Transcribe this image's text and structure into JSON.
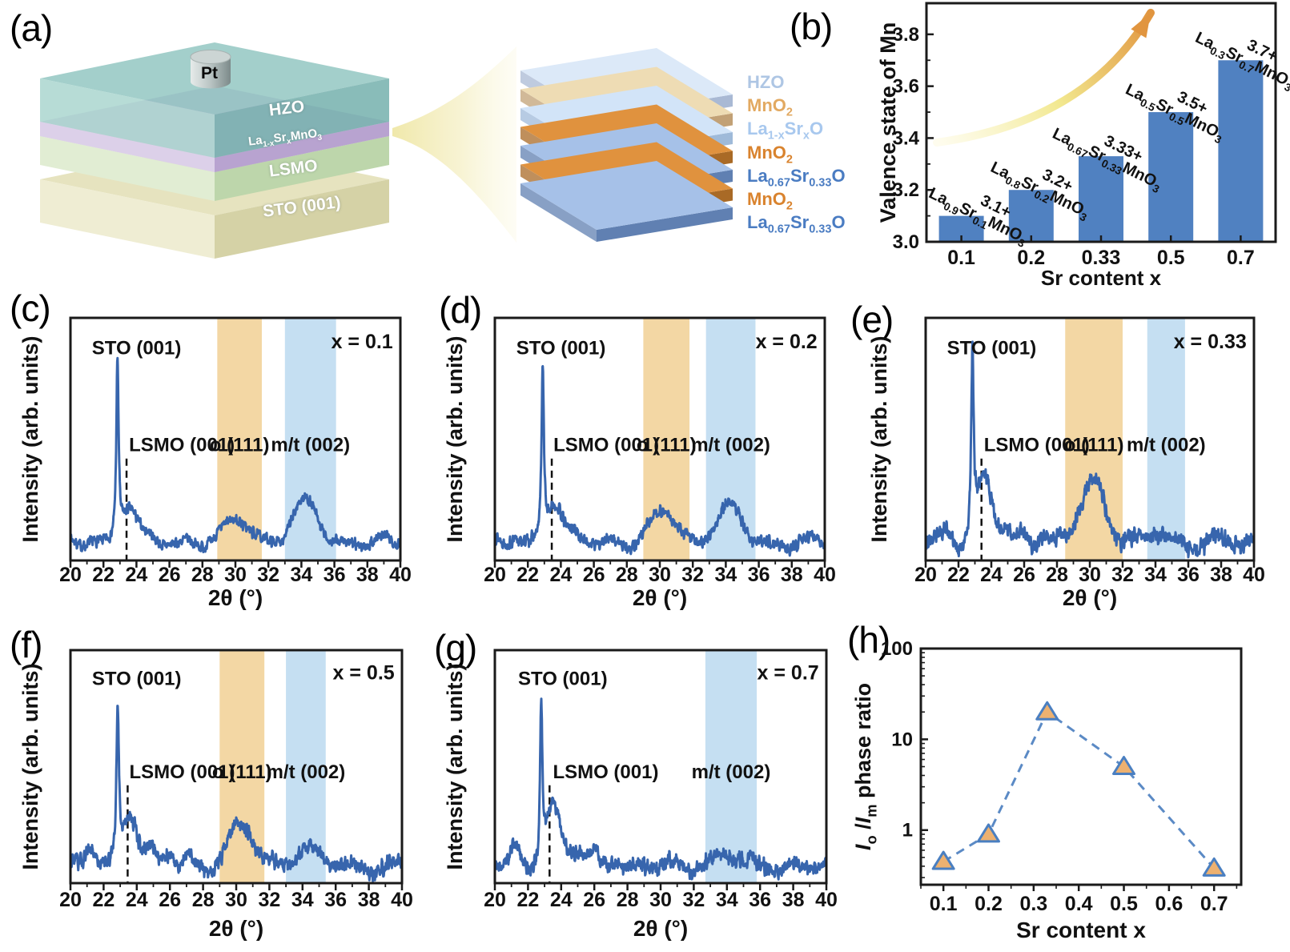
{
  "panels": {
    "a": {
      "label": "(a)",
      "stack": {
        "electrode": "Pt",
        "layers": [
          {
            "text": "HZO"
          },
          {
            "formula": "La_{1-x}Sr_{x}MnO_{3}"
          },
          {
            "text": "LSMO"
          },
          {
            "text": "STO (001)"
          }
        ]
      },
      "superlattice": [
        {
          "formula": "HZO",
          "color": "#aec6e4",
          "top": "#dce9f8",
          "side": "#a9b9d4"
        },
        {
          "formula": "MnO_{2}",
          "color": "#e2a961",
          "top": "#eedcb4",
          "side": "#c2a176"
        },
        {
          "formula": "La_{1-x}Sr_{x}O",
          "color": "#a8c8ee",
          "top": "#d2e4f8",
          "side": "#9fbad9"
        },
        {
          "formula": "MnO_{2}",
          "color": "#d9832e",
          "top": "#e0923e",
          "side": "#a96a26"
        },
        {
          "formula": "La_{0.67}Sr_{0.33}O",
          "color": "#4a7cc2",
          "top": "#a6c1e8",
          "side": "#6080b2"
        },
        {
          "formula": "MnO_{2}",
          "color": "#d9832e",
          "top": "#e0923e",
          "side": "#a96a26"
        },
        {
          "formula": "La_{0.67}Sr_{0.33}O",
          "color": "#4a7cc2",
          "top": "#a6c1e8",
          "side": "#6080b2"
        }
      ]
    },
    "b": {
      "label": "(b)"
    },
    "c": {
      "label": "(c)"
    },
    "d": {
      "label": "(d)"
    },
    "e": {
      "label": "(e)"
    },
    "f": {
      "label": "(f)"
    },
    "g": {
      "label": "(g)"
    },
    "h": {
      "label": "(h)"
    }
  },
  "chart_data": [
    {
      "id": "b",
      "type": "bar",
      "title": "",
      "ylabel": "Valence state of Mn",
      "xlabel": "Sr content x",
      "categories": [
        "0.1",
        "0.2",
        "0.33",
        "0.5",
        "0.7"
      ],
      "values": [
        3.1,
        3.2,
        3.33,
        3.5,
        3.7
      ],
      "ylim": [
        3.0,
        3.92
      ],
      "yticks": [
        3.0,
        3.2,
        3.4,
        3.6,
        3.8
      ],
      "bar_color": "#5081c1",
      "valence_color": "#d92b25",
      "bar_labels": [
        {
          "formula": "La_{0.9}Sr_{0.1}MnO_{3}",
          "valence": "3.1+"
        },
        {
          "formula": "La_{0.8}Sr_{0.2}MnO_{3}",
          "valence": "3.2+"
        },
        {
          "formula": "La_{0.67}Sr_{0.33}MnO_{3}",
          "valence": "3.33+"
        },
        {
          "formula": "La_{0.5}Sr_{0.5}MnO_{3}",
          "valence": "3.5+"
        },
        {
          "formula": "La_{0.3}Sr_{0.7}MnO_{3}",
          "valence": "3.7+"
        }
      ],
      "trend_arrow": true
    },
    {
      "id": "c",
      "type": "line",
      "subtype": "xrd",
      "sample": "x = 0.1",
      "xlabel": "2θ (°)",
      "ylabel": "Intensity (arb. units)",
      "y_units": "arbitrary",
      "xlim": [
        20,
        40
      ],
      "xtick_major": 2,
      "xtick_minor": 1,
      "line_color": "#3765ad",
      "bands": [
        {
          "label": "o (111)",
          "label_color": "#d92b25",
          "range": [
            28.9,
            31.6
          ],
          "fill": "#f3d7a4"
        },
        {
          "label": "m/t (002)",
          "label_color": "#111111",
          "range": [
            33.0,
            36.1
          ],
          "fill": "#c5dff2"
        }
      ],
      "dashed_x": 23.4,
      "annotations": [
        {
          "text": "STO (001)",
          "x": 21.3,
          "yfrac": 0.15,
          "anchor": "start"
        },
        {
          "text": "LSMO (001)",
          "x": 23.55,
          "yfrac": 0.55,
          "anchor": "start"
        }
      ],
      "peaks": {
        "sto": {
          "x": 22.85,
          "h": 0.73
        },
        "shoulder": {
          "x": 23.55,
          "h": 0.14
        },
        "o111": {
          "x": 30.25,
          "h": 0.1
        },
        "mt002": {
          "x": 34.25,
          "h": 0.16
        }
      },
      "noise": 0.033,
      "fringe": 0.02,
      "seed": 7
    },
    {
      "id": "d",
      "type": "line",
      "subtype": "xrd",
      "sample": "x = 0.2",
      "xlabel": "2θ (°)",
      "ylabel": "Intensity (arb. units)",
      "y_units": "arbitrary",
      "xlim": [
        20,
        40
      ],
      "xtick_major": 2,
      "xtick_minor": 1,
      "line_color": "#3765ad",
      "bands": [
        {
          "label": "o (111)",
          "label_color": "#d92b25",
          "range": [
            29.0,
            31.8
          ],
          "fill": "#f3d7a4"
        },
        {
          "label": "m/t (002)",
          "label_color": "#111111",
          "range": [
            32.8,
            35.8
          ],
          "fill": "#c5dff2"
        }
      ],
      "dashed_x": 23.45,
      "annotations": [
        {
          "text": "STO (001)",
          "x": 21.3,
          "yfrac": 0.15,
          "anchor": "start"
        },
        {
          "text": "LSMO (001)",
          "x": 23.55,
          "yfrac": 0.55,
          "anchor": "start"
        }
      ],
      "peaks": {
        "sto": {
          "x": 22.9,
          "h": 0.71
        },
        "shoulder": {
          "x": 23.6,
          "h": 0.16
        },
        "o111": {
          "x": 30.3,
          "h": 0.13
        },
        "mt002": {
          "x": 34.2,
          "h": 0.14
        }
      },
      "noise": 0.035,
      "fringe": 0.025,
      "seed": 13
    },
    {
      "id": "e",
      "type": "line",
      "subtype": "xrd",
      "sample": "x = 0.33",
      "xlabel": "2θ (°)",
      "ylabel": "Intensity (arb. units)",
      "y_units": "arbitrary",
      "xlim": [
        20,
        40
      ],
      "xtick_major": 2,
      "xtick_minor": 1,
      "line_color": "#3765ad",
      "bands": [
        {
          "label": "o (111)",
          "label_color": "#d92b25",
          "range": [
            28.5,
            32.0
          ],
          "fill": "#f3d7a4"
        },
        {
          "label": "m/t (002)",
          "label_color": "#111111",
          "range": [
            33.5,
            35.8
          ],
          "fill": "#c5dff2"
        }
      ],
      "dashed_x": 23.4,
      "annotations": [
        {
          "text": "STO (001)",
          "x": 21.3,
          "yfrac": 0.15,
          "anchor": "start"
        },
        {
          "text": "LSMO (001)",
          "x": 23.55,
          "yfrac": 0.55,
          "anchor": "start"
        }
      ],
      "peaks": {
        "sto": {
          "x": 22.85,
          "h": 0.74
        },
        "shoulder": {
          "x": 23.6,
          "h": 0.26
        },
        "o111": {
          "x": 30.2,
          "h": 0.26
        },
        "mt002": {
          "x": 34.3,
          "h": 0.03
        }
      },
      "noise": 0.05,
      "fringe": 0.065,
      "seed": 23
    },
    {
      "id": "f",
      "type": "line",
      "subtype": "xrd",
      "sample": "x = 0.5",
      "xlabel": "2θ (°)",
      "ylabel": "Intensity (arb. units)",
      "y_units": "arbitrary",
      "xlim": [
        20,
        40
      ],
      "xtick_major": 2,
      "xtick_minor": 1,
      "line_color": "#3765ad",
      "bands": [
        {
          "label": "o (111)",
          "label_color": "#d92b25",
          "range": [
            29.0,
            31.7
          ],
          "fill": "#f3d7a4"
        },
        {
          "label": "m/t (002)",
          "label_color": "#111111",
          "range": [
            33.0,
            35.4
          ],
          "fill": "#c5dff2"
        }
      ],
      "dashed_x": 23.45,
      "annotations": [
        {
          "text": "STO (001)",
          "x": 21.3,
          "yfrac": 0.15,
          "anchor": "start"
        },
        {
          "text": "LSMO (001)",
          "x": 23.55,
          "yfrac": 0.55,
          "anchor": "start"
        }
      ],
      "peaks": {
        "sto": {
          "x": 22.85,
          "h": 0.66
        },
        "shoulder": {
          "x": 23.6,
          "h": 0.24
        },
        "o111": {
          "x": 30.25,
          "h": 0.17
        },
        "mt002": {
          "x": 34.2,
          "h": 0.07
        }
      },
      "noise": 0.05,
      "fringe": 0.07,
      "seed": 31
    },
    {
      "id": "g",
      "type": "line",
      "subtype": "xrd",
      "sample": "x = 0.7",
      "xlabel": "2θ (°)",
      "ylabel": "Intensity (arb. units)",
      "y_units": "arbitrary",
      "xlim": [
        20,
        40
      ],
      "xtick_major": 2,
      "xtick_minor": 1,
      "line_color": "#3765ad",
      "bands": [
        {
          "label": "m/t (002)",
          "label_color": "#111111",
          "range": [
            32.7,
            35.8
          ],
          "fill": "#c5dff2"
        }
      ],
      "dashed_x": 23.3,
      "annotations": [
        {
          "text": "STO (001)",
          "x": 21.4,
          "yfrac": 0.15,
          "anchor": "start"
        },
        {
          "text": "LSMO (001)",
          "x": 23.5,
          "yfrac": 0.55,
          "anchor": "start"
        }
      ],
      "peaks": {
        "sto": {
          "x": 22.8,
          "h": 0.68
        },
        "shoulder": {
          "x": 23.55,
          "h": 0.25
        },
        "o111": null,
        "mt002": {
          "x": 33.9,
          "h": 0.045
        }
      },
      "noise": 0.05,
      "fringe": 0.07,
      "seed": 41
    },
    {
      "id": "h",
      "type": "scatter",
      "x": [
        0.1,
        0.2,
        0.33,
        0.5,
        0.7
      ],
      "y": [
        0.45,
        0.9,
        20,
        5,
        0.38
      ],
      "xlabel": "Sr content x",
      "ylabel_formula": "*I*_{o} /*I*_{m} phase ratio",
      "yscale": "log",
      "ylim": [
        0.25,
        100
      ],
      "xlim": [
        0.05,
        0.76
      ],
      "xticks": [
        0.1,
        0.2,
        0.3,
        0.4,
        0.5,
        0.6,
        0.7
      ],
      "yticks": [
        1,
        10,
        100
      ],
      "marker": "triangle-up",
      "marker_fill": "#edb170",
      "marker_edge": "#4a7fc1",
      "line_color": "#5b8ac5",
      "line_style": "dashed"
    }
  ]
}
